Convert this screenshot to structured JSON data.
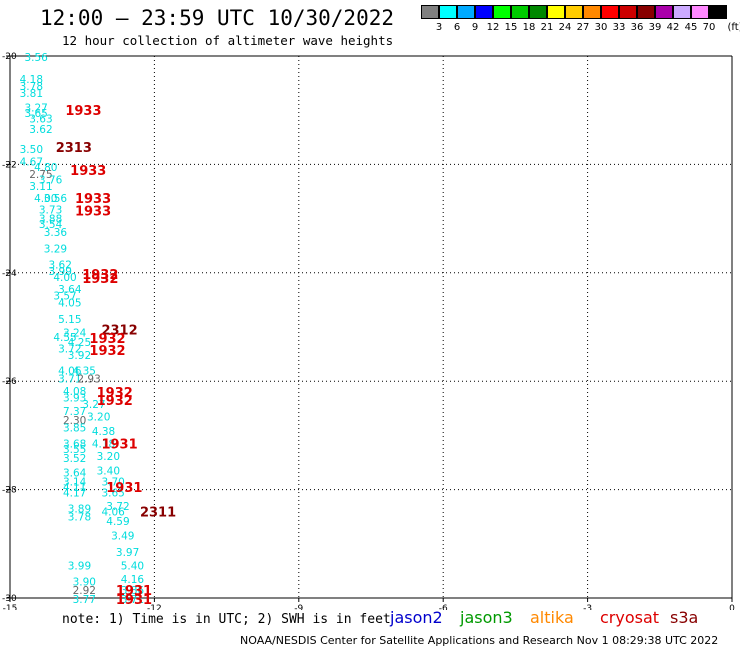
{
  "header": {
    "title": "12:00 – 23:59 UTC 10/30/2022",
    "subtitle": "12 hour collection of altimeter wave heights"
  },
  "color_legend": {
    "unit": "(ft)",
    "bins": [
      {
        "label": "3",
        "color": "#808080"
      },
      {
        "label": "6",
        "color": "#00ffff"
      },
      {
        "label": "9",
        "color": "#00aaff"
      },
      {
        "label": "12",
        "color": "#0000ff"
      },
      {
        "label": "15",
        "color": "#00ff00"
      },
      {
        "label": "18",
        "color": "#00cc00"
      },
      {
        "label": "21",
        "color": "#008800"
      },
      {
        "label": "24",
        "color": "#ffff00"
      },
      {
        "label": "27",
        "color": "#ffcc00"
      },
      {
        "label": "30",
        "color": "#ff8800"
      },
      {
        "label": "33",
        "color": "#ff0000"
      },
      {
        "label": "36",
        "color": "#cc0000"
      },
      {
        "label": "39",
        "color": "#880000"
      },
      {
        "label": "42",
        "color": "#aa00aa"
      },
      {
        "label": "45",
        "color": "#ccaaff"
      },
      {
        "label": "70",
        "color": "#ff88ff"
      },
      {
        "label": "",
        "color": "#000000"
      }
    ]
  },
  "map": {
    "lon_range": [
      -15,
      0
    ],
    "lat_range": [
      -30,
      -20
    ],
    "x_ticks": [
      "-15",
      "-12",
      "-9",
      "-6",
      "-3",
      "0"
    ],
    "y_ticks": [
      "-20",
      "-22",
      "-24",
      "-26",
      "-28",
      "-30"
    ],
    "observations": [
      {
        "text": "3.56",
        "lon": -14.7,
        "lat": -20.02,
        "color": "#00dddd"
      },
      {
        "text": "4.18",
        "lon": -14.8,
        "lat": -20.42,
        "color": "#00dddd"
      },
      {
        "text": "3.78",
        "lon": -14.8,
        "lat": -20.55,
        "color": "#00dddd"
      },
      {
        "text": "3.81",
        "lon": -14.8,
        "lat": -20.68,
        "color": "#00dddd"
      },
      {
        "text": "3.27",
        "lon": -14.7,
        "lat": -20.95,
        "color": "#00dddd"
      },
      {
        "text": "3.65",
        "lon": -14.7,
        "lat": -21.05,
        "color": "#00dddd"
      },
      {
        "text": "3.63",
        "lon": -14.6,
        "lat": -21.15,
        "color": "#00dddd"
      },
      {
        "text": "3.62",
        "lon": -14.6,
        "lat": -21.35,
        "color": "#00dddd"
      },
      {
        "text": "3.50",
        "lon": -14.8,
        "lat": -21.72,
        "color": "#00dddd"
      },
      {
        "text": "4.67",
        "lon": -14.8,
        "lat": -21.95,
        "color": "#00dddd"
      },
      {
        "text": "4.80",
        "lon": -14.5,
        "lat": -22.05,
        "color": "#00dddd"
      },
      {
        "text": "2.75",
        "lon": -14.6,
        "lat": -22.18,
        "color": "#666666"
      },
      {
        "text": "3.76",
        "lon": -14.4,
        "lat": -22.28,
        "color": "#00dddd"
      },
      {
        "text": "3.11",
        "lon": -14.6,
        "lat": -22.4,
        "color": "#00dddd"
      },
      {
        "text": "4.00",
        "lon": -14.5,
        "lat": -22.62,
        "color": "#00dddd"
      },
      {
        "text": "3.56",
        "lon": -14.3,
        "lat": -22.62,
        "color": "#00dddd"
      },
      {
        "text": "3.73",
        "lon": -14.4,
        "lat": -22.83,
        "color": "#00dddd"
      },
      {
        "text": "3.88",
        "lon": -14.4,
        "lat": -23.0,
        "color": "#00dddd"
      },
      {
        "text": "3.54",
        "lon": -14.4,
        "lat": -23.1,
        "color": "#00dddd"
      },
      {
        "text": "3.36",
        "lon": -14.3,
        "lat": -23.25,
        "color": "#00dddd"
      },
      {
        "text": "3.29",
        "lon": -14.3,
        "lat": -23.55,
        "color": "#00dddd"
      },
      {
        "text": "3.62",
        "lon": -14.2,
        "lat": -23.85,
        "color": "#00dddd"
      },
      {
        "text": "3.99",
        "lon": -14.2,
        "lat": -23.97,
        "color": "#00dddd"
      },
      {
        "text": "4.00",
        "lon": -14.1,
        "lat": -24.08,
        "color": "#00dddd"
      },
      {
        "text": "3.64",
        "lon": -14.0,
        "lat": -24.3,
        "color": "#00dddd"
      },
      {
        "text": "3.57",
        "lon": -14.1,
        "lat": -24.42,
        "color": "#00dddd"
      },
      {
        "text": "4.05",
        "lon": -14.0,
        "lat": -24.55,
        "color": "#00dddd"
      },
      {
        "text": "5.15",
        "lon": -14.0,
        "lat": -24.85,
        "color": "#00dddd"
      },
      {
        "text": "3.24",
        "lon": -13.9,
        "lat": -25.1,
        "color": "#00dddd"
      },
      {
        "text": "4.55",
        "lon": -14.1,
        "lat": -25.18,
        "color": "#00dddd"
      },
      {
        "text": "4.25",
        "lon": -13.8,
        "lat": -25.28,
        "color": "#00dddd"
      },
      {
        "text": "3.72",
        "lon": -14.0,
        "lat": -25.4,
        "color": "#00dddd"
      },
      {
        "text": "3.92",
        "lon": -13.8,
        "lat": -25.52,
        "color": "#00dddd"
      },
      {
        "text": "4.06",
        "lon": -14.0,
        "lat": -25.8,
        "color": "#00dddd"
      },
      {
        "text": "4.35",
        "lon": -13.7,
        "lat": -25.8,
        "color": "#00dddd"
      },
      {
        "text": "3.71",
        "lon": -14.0,
        "lat": -25.95,
        "color": "#00dddd"
      },
      {
        "text": "2.93",
        "lon": -13.6,
        "lat": -25.95,
        "color": "#666666"
      },
      {
        "text": "4.08",
        "lon": -13.9,
        "lat": -26.18,
        "color": "#00dddd"
      },
      {
        "text": "3.93",
        "lon": -13.9,
        "lat": -26.3,
        "color": "#00dddd"
      },
      {
        "text": "3.27",
        "lon": -13.5,
        "lat": -26.42,
        "color": "#00dddd"
      },
      {
        "text": "7.37",
        "lon": -13.9,
        "lat": -26.55,
        "color": "#00dddd"
      },
      {
        "text": "3.20",
        "lon": -13.4,
        "lat": -26.65,
        "color": "#00dddd"
      },
      {
        "text": "2.30",
        "lon": -13.9,
        "lat": -26.72,
        "color": "#666666"
      },
      {
        "text": "3.85",
        "lon": -13.9,
        "lat": -26.85,
        "color": "#00dddd"
      },
      {
        "text": "4.38",
        "lon": -13.3,
        "lat": -26.92,
        "color": "#00dddd"
      },
      {
        "text": "3.68",
        "lon": -13.9,
        "lat": -27.15,
        "color": "#00dddd"
      },
      {
        "text": "4.18",
        "lon": -13.3,
        "lat": -27.15,
        "color": "#00dddd"
      },
      {
        "text": "3.55",
        "lon": -13.9,
        "lat": -27.25,
        "color": "#00dddd"
      },
      {
        "text": "3.20",
        "lon": -13.2,
        "lat": -27.38,
        "color": "#00dddd"
      },
      {
        "text": "3.52",
        "lon": -13.9,
        "lat": -27.42,
        "color": "#00dddd"
      },
      {
        "text": "3.64",
        "lon": -13.9,
        "lat": -27.68,
        "color": "#00dddd"
      },
      {
        "text": "3.40",
        "lon": -13.2,
        "lat": -27.65,
        "color": "#00dddd"
      },
      {
        "text": "3.14",
        "lon": -13.9,
        "lat": -27.85,
        "color": "#00dddd"
      },
      {
        "text": "4.11",
        "lon": -13.9,
        "lat": -27.95,
        "color": "#00dddd"
      },
      {
        "text": "3.70",
        "lon": -13.1,
        "lat": -27.85,
        "color": "#00dddd"
      },
      {
        "text": "4.17",
        "lon": -13.9,
        "lat": -28.05,
        "color": "#00dddd"
      },
      {
        "text": "3.65",
        "lon": -13.1,
        "lat": -28.05,
        "color": "#00dddd"
      },
      {
        "text": "3.89",
        "lon": -13.8,
        "lat": -28.35,
        "color": "#00dddd"
      },
      {
        "text": "3.72",
        "lon": -13.0,
        "lat": -28.3,
        "color": "#00dddd"
      },
      {
        "text": "4.06",
        "lon": -13.1,
        "lat": -28.4,
        "color": "#00dddd"
      },
      {
        "text": "3.78",
        "lon": -13.8,
        "lat": -28.5,
        "color": "#00dddd"
      },
      {
        "text": "4.59",
        "lon": -13.0,
        "lat": -28.58,
        "color": "#00dddd"
      },
      {
        "text": "3.49",
        "lon": -12.9,
        "lat": -28.85,
        "color": "#00dddd"
      },
      {
        "text": "3.97",
        "lon": -12.8,
        "lat": -29.15,
        "color": "#00dddd"
      },
      {
        "text": "3.99",
        "lon": -13.8,
        "lat": -29.4,
        "color": "#00dddd"
      },
      {
        "text": "5.40",
        "lon": -12.7,
        "lat": -29.4,
        "color": "#00dddd"
      },
      {
        "text": "3.90",
        "lon": -13.7,
        "lat": -29.7,
        "color": "#00dddd"
      },
      {
        "text": "4.16",
        "lon": -12.7,
        "lat": -29.65,
        "color": "#00dddd"
      },
      {
        "text": "2.92",
        "lon": -13.7,
        "lat": -29.85,
        "color": "#666666"
      },
      {
        "text": "3.86",
        "lon": -12.7,
        "lat": -29.85,
        "color": "#00dddd"
      },
      {
        "text": "3.77",
        "lon": -13.7,
        "lat": -30.02,
        "color": "#00dddd"
      },
      {
        "text": "3.71",
        "lon": -12.7,
        "lat": -30.02,
        "color": "#00dddd"
      }
    ],
    "passes": [
      {
        "text": "1933",
        "lon": -13.85,
        "lat": -21.0,
        "color": "#dd0000"
      },
      {
        "text": "2313",
        "lon": -14.05,
        "lat": -21.68,
        "color": "#880000"
      },
      {
        "text": "1933",
        "lon": -13.75,
        "lat": -22.1,
        "color": "#dd0000"
      },
      {
        "text": "1933",
        "lon": -13.65,
        "lat": -22.62,
        "color": "#dd0000"
      },
      {
        "text": "1933",
        "lon": -13.65,
        "lat": -22.85,
        "color": "#dd0000"
      },
      {
        "text": "1932",
        "lon": -13.5,
        "lat": -24.02,
        "color": "#dd0000"
      },
      {
        "text": "1932",
        "lon": -13.5,
        "lat": -24.1,
        "color": "#dd0000"
      },
      {
        "text": "2312",
        "lon": -13.1,
        "lat": -25.05,
        "color": "#880000"
      },
      {
        "text": "1932",
        "lon": -13.35,
        "lat": -25.2,
        "color": "#dd0000"
      },
      {
        "text": "1932",
        "lon": -13.35,
        "lat": -25.42,
        "color": "#dd0000"
      },
      {
        "text": "1932",
        "lon": -13.2,
        "lat": -26.2,
        "color": "#dd0000"
      },
      {
        "text": "1932",
        "lon": -13.2,
        "lat": -26.35,
        "color": "#dd0000"
      },
      {
        "text": "1931",
        "lon": -13.1,
        "lat": -27.15,
        "color": "#dd0000"
      },
      {
        "text": "1931",
        "lon": -13.0,
        "lat": -27.95,
        "color": "#dd0000"
      },
      {
        "text": "2311",
        "lon": -12.3,
        "lat": -28.4,
        "color": "#880000"
      },
      {
        "text": "1931",
        "lon": -12.8,
        "lat": -29.85,
        "color": "#dd0000"
      },
      {
        "text": "1931",
        "lon": -12.8,
        "lat": -30.02,
        "color": "#dd0000"
      }
    ]
  },
  "footer": {
    "note": "note: 1) Time is in UTC; 2) SWH is in feet",
    "satellites": [
      {
        "label": "jason2",
        "color": "#0000cc"
      },
      {
        "label": "jason3",
        "color": "#009900"
      },
      {
        "label": "altika",
        "color": "#ff8800"
      },
      {
        "label": "cryosat",
        "color": "#dd0000"
      },
      {
        "label": "s3a",
        "color": "#880000"
      }
    ],
    "credit": "NOAA/NESDIS Center for Satellite Applications and Research     Nov  1 08:29:38 UTC 2022"
  }
}
